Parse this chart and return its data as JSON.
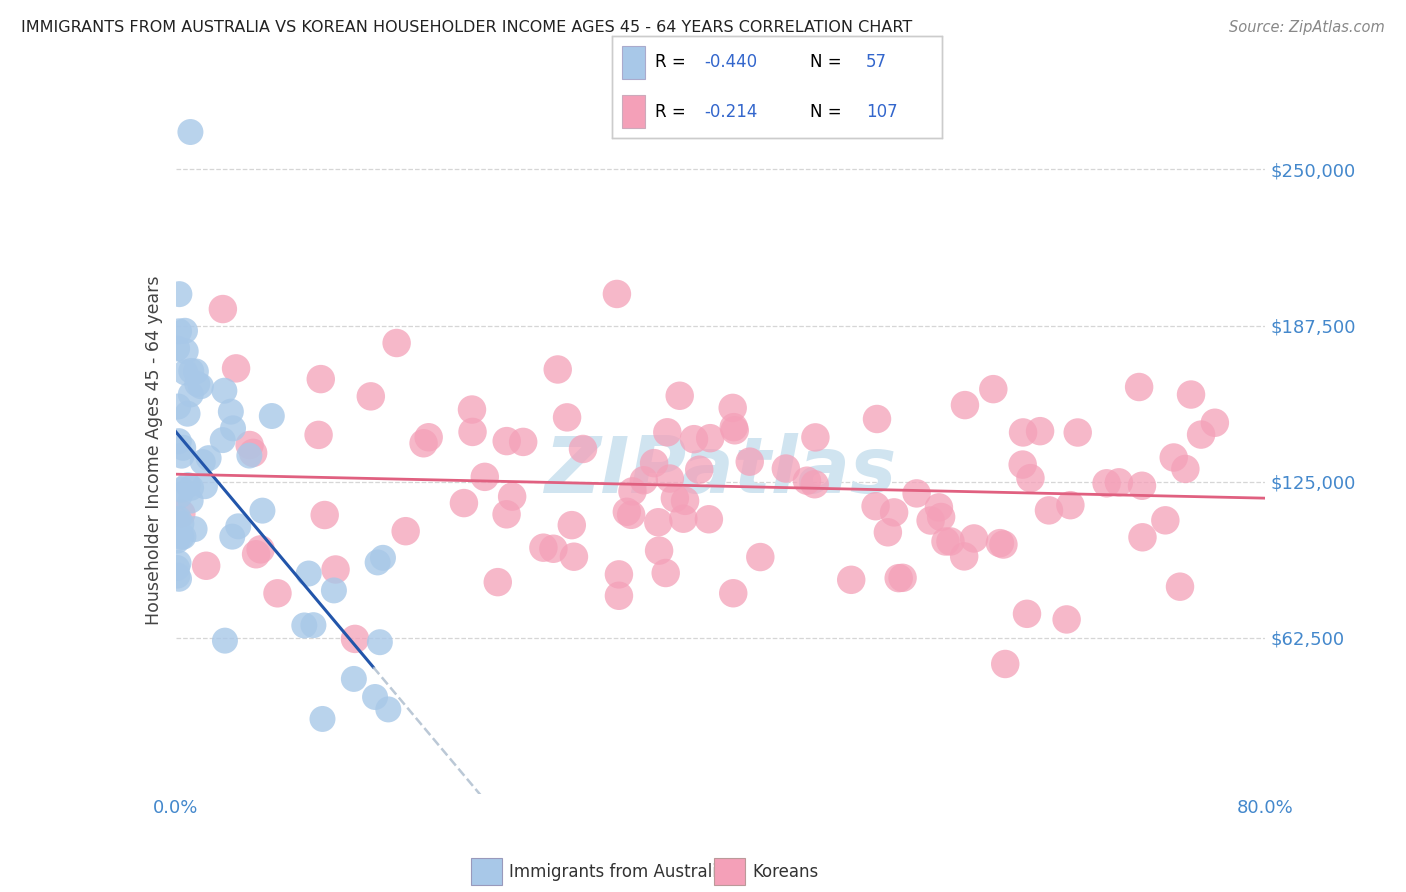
{
  "title": "IMMIGRANTS FROM AUSTRALIA VS KOREAN HOUSEHOLDER INCOME AGES 45 - 64 YEARS CORRELATION CHART",
  "source": "Source: ZipAtlas.com",
  "ylabel": "Householder Income Ages 45 - 64 years",
  "xlim": [
    0.0,
    0.8
  ],
  "ylim": [
    0,
    275000
  ],
  "ytick_positions": [
    62500,
    125000,
    187500,
    250000
  ],
  "ytick_labels": [
    "$62,500",
    "$125,000",
    "$187,500",
    "$250,000"
  ],
  "color_australia": "#a8c8e8",
  "color_korea": "#f4a0b8",
  "line_color_australia": "#2255aa",
  "line_color_korea": "#e06080",
  "line_color_aus_dash": "#aabbcc",
  "tick_color": "#4488cc",
  "background": "#ffffff",
  "grid_color": "#cccccc",
  "watermark_color": "#d0e4f0",
  "legend_value_color": "#3366cc",
  "legend_korea_value_color": "#cc4488"
}
